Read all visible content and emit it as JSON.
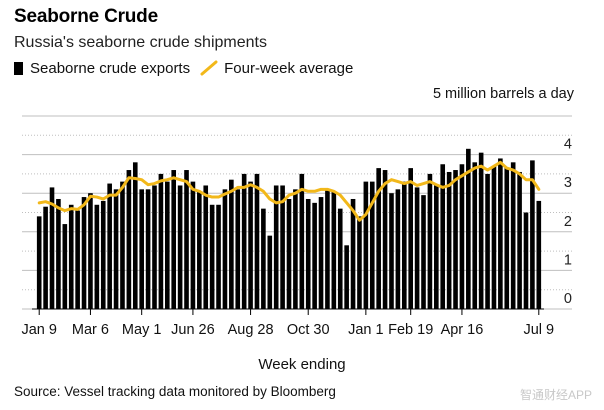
{
  "header": {
    "title": "Seaborne Crude",
    "subtitle": "Russia's seaborne crude shipments"
  },
  "legend": {
    "bars_label": "Seaborne crude exports",
    "line_label": "Four-week average"
  },
  "unit_label": "5 million barrels a day",
  "xaxis_title": "Week ending",
  "source": "Source: Vessel tracking data monitored by Bloomberg",
  "watermark": "智通财经APP",
  "colors": {
    "bars": "#000000",
    "line": "#f2b81a",
    "grid": "#bfbfbf"
  },
  "chart_data": {
    "type": "bar",
    "title": "Seaborne Crude",
    "subtitle": "Russia's seaborne crude shipments",
    "xlabel": "Week ending",
    "ylabel": "5 million barrels a day",
    "ylim": [
      0,
      5
    ],
    "yticks": [
      0,
      1,
      2,
      3,
      4
    ],
    "grid": true,
    "legend_position": "top-left",
    "x_tick_labels": [
      {
        "index": 0,
        "label": "Jan 9"
      },
      {
        "index": 8,
        "label": "Mar 6"
      },
      {
        "index": 16,
        "label": "May 1"
      },
      {
        "index": 24,
        "label": "Jun 26"
      },
      {
        "index": 33,
        "label": "Aug 28"
      },
      {
        "index": 42,
        "label": "Oct 30"
      },
      {
        "index": 51,
        "label": "Jan 1"
      },
      {
        "index": 58,
        "label": "Feb 19"
      },
      {
        "index": 66,
        "label": "Apr 16"
      },
      {
        "index": 78,
        "label": "Jul 9"
      }
    ],
    "series": [
      {
        "name": "Seaborne crude exports",
        "type": "bar",
        "values": [
          2.4,
          2.65,
          3.15,
          2.85,
          2.2,
          2.7,
          2.55,
          2.9,
          3.0,
          2.7,
          2.8,
          3.25,
          3.1,
          3.3,
          3.6,
          3.8,
          3.1,
          3.1,
          3.2,
          3.5,
          3.3,
          3.6,
          3.2,
          3.6,
          3.3,
          3.05,
          3.2,
          2.7,
          2.7,
          3.1,
          3.35,
          3.1,
          3.5,
          3.3,
          3.5,
          2.6,
          1.9,
          3.2,
          3.2,
          2.85,
          3.1,
          3.5,
          2.85,
          2.75,
          2.9,
          3.1,
          3.05,
          2.6,
          1.65,
          2.85,
          2.4,
          3.3,
          3.3,
          3.65,
          3.6,
          3.0,
          3.1,
          3.3,
          3.65,
          3.15,
          2.95,
          3.5,
          3.2,
          3.75,
          3.55,
          3.6,
          3.75,
          4.15,
          3.8,
          4.05,
          3.5,
          3.7,
          3.9,
          3.65,
          3.8,
          3.55,
          2.5,
          3.85,
          2.8
        ]
      },
      {
        "name": "Four-week average",
        "type": "line",
        "values": [
          2.75,
          2.78,
          2.72,
          2.62,
          2.55,
          2.6,
          2.58,
          2.7,
          2.92,
          2.9,
          2.85,
          2.95,
          2.95,
          3.15,
          3.4,
          3.38,
          3.35,
          3.22,
          3.25,
          3.32,
          3.35,
          3.4,
          3.35,
          3.3,
          3.1,
          3.05,
          2.95,
          2.9,
          2.9,
          2.98,
          3.05,
          3.15,
          3.15,
          3.22,
          3.15,
          3.05,
          2.85,
          2.75,
          2.78,
          2.95,
          3.0,
          3.1,
          3.05,
          3.05,
          3.1,
          3.1,
          3.05,
          2.95,
          2.75,
          2.55,
          2.3,
          2.45,
          2.75,
          3.05,
          3.25,
          3.35,
          3.3,
          3.25,
          3.3,
          3.2,
          3.25,
          3.3,
          3.22,
          3.15,
          3.2,
          3.35,
          3.45,
          3.55,
          3.65,
          3.7,
          3.6,
          3.7,
          3.8,
          3.65,
          3.6,
          3.5,
          3.35,
          3.35,
          3.1
        ]
      }
    ]
  }
}
